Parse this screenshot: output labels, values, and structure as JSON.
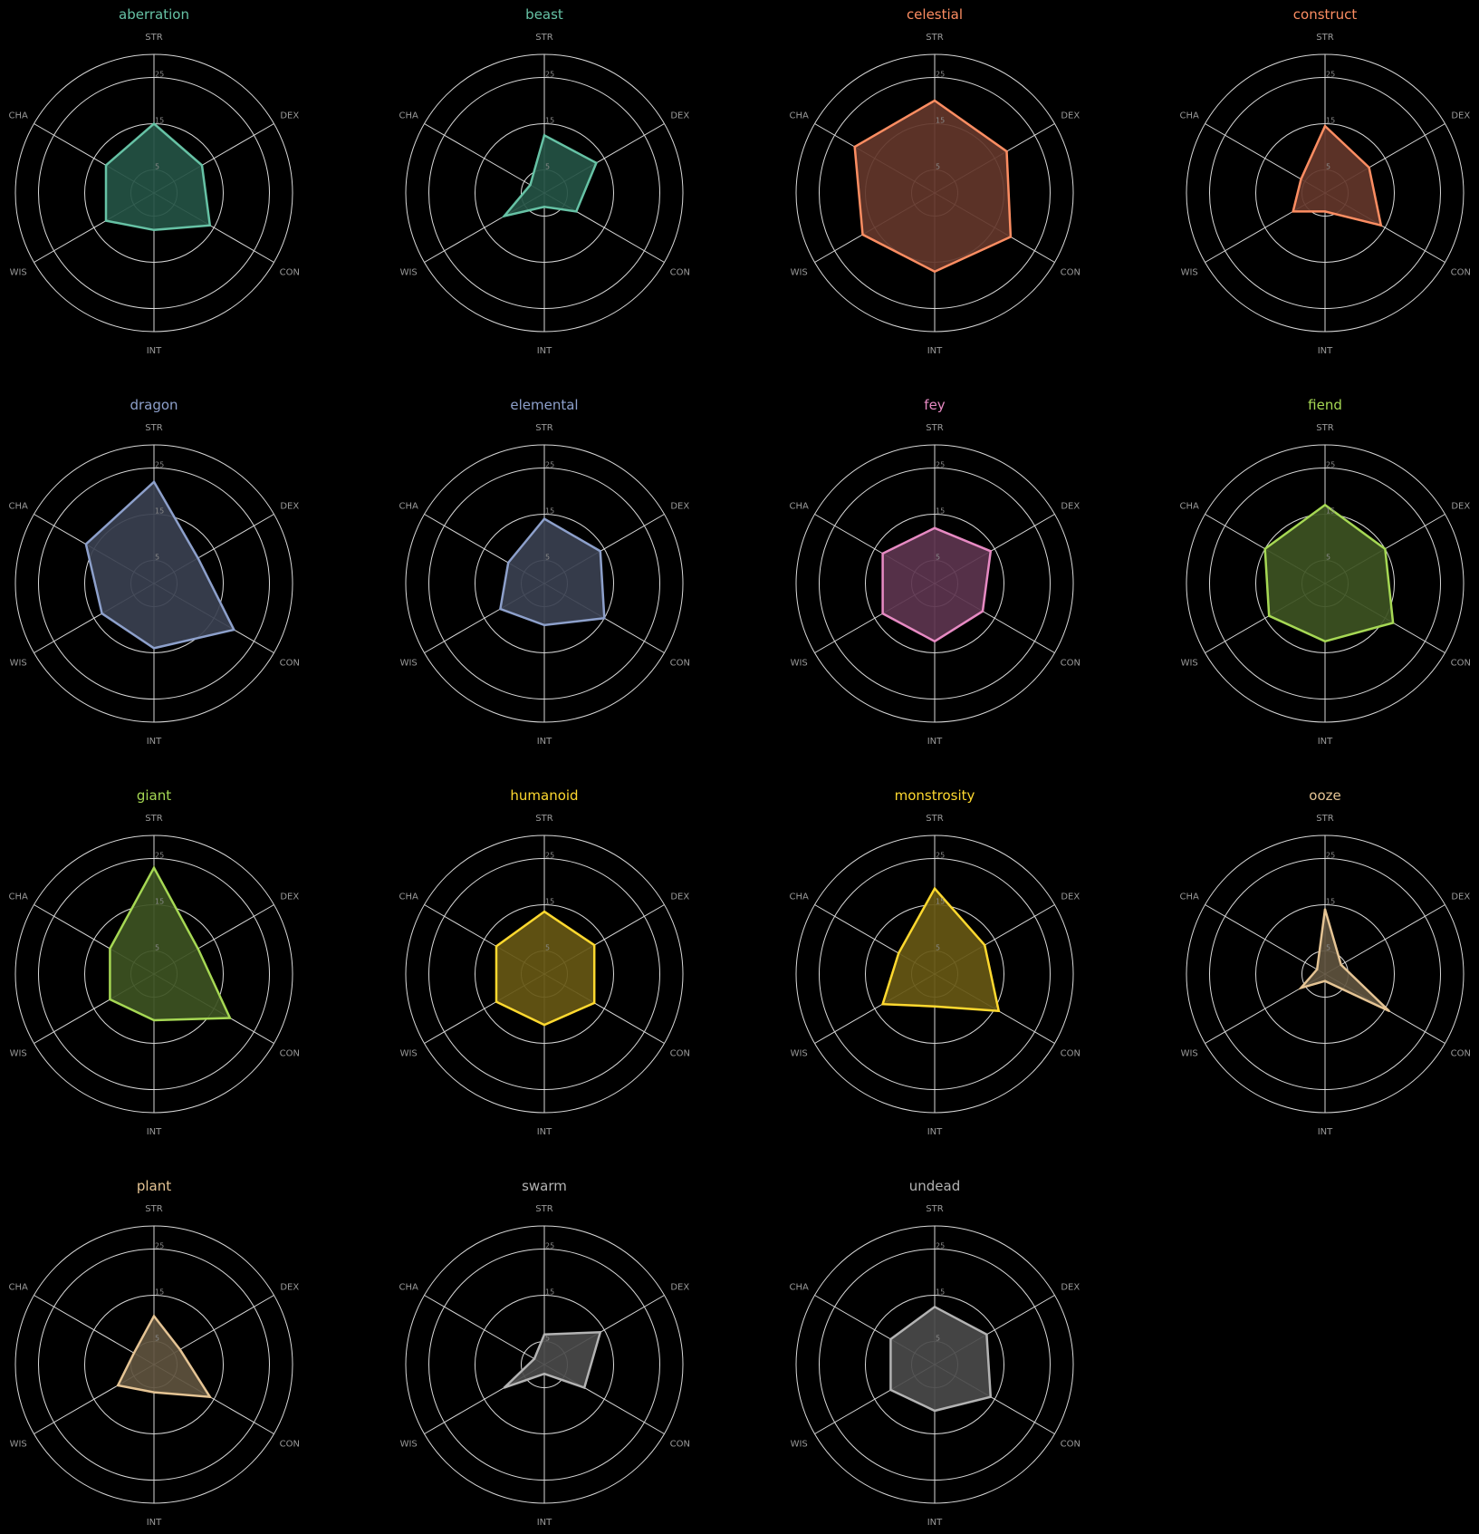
{
  "chart_data": {
    "type": "radar",
    "axes": [
      "STR",
      "DEX",
      "CON",
      "INT",
      "WIS",
      "CHA"
    ],
    "rlim": [
      0,
      30
    ],
    "rings": [
      5,
      15,
      25,
      30
    ],
    "tick_labels": [
      "5",
      "15",
      "25"
    ],
    "grid": true,
    "background": "#000000",
    "grid_color": "#d8d8d8",
    "panels": [
      {
        "title": "aberration",
        "color": "#66c2a5",
        "fill": "#245244",
        "values": [
          15,
          12,
          14,
          8,
          12,
          12
        ]
      },
      {
        "title": "beast",
        "color": "#66c2a5",
        "fill": "#245244",
        "values": [
          12.5,
          13,
          8,
          3,
          10,
          3.5
        ]
      },
      {
        "title": "celestial",
        "color": "#fc8d62",
        "fill": "#63362a",
        "values": [
          20,
          18,
          19,
          17,
          18,
          20
        ]
      },
      {
        "title": "construct",
        "color": "#fc8d62",
        "fill": "#63362a",
        "values": [
          14.5,
          11,
          14,
          4,
          8,
          6
        ]
      },
      {
        "title": "dragon",
        "color": "#8da0cb",
        "fill": "#3a4050",
        "values": [
          22,
          11,
          20,
          14,
          13,
          17
        ]
      },
      {
        "title": "elemental",
        "color": "#8da0cb",
        "fill": "#3a4050",
        "values": [
          14,
          14,
          15,
          9,
          11,
          9
        ]
      },
      {
        "title": "fey",
        "color": "#e78ac3",
        "fill": "#5c344e",
        "values": [
          12,
          14,
          12,
          12.5,
          13,
          13
        ]
      },
      {
        "title": "fiend",
        "color": "#a6d854",
        "fill": "#3d5222",
        "values": [
          17,
          15,
          17,
          12.5,
          14,
          15
        ]
      },
      {
        "title": "giant",
        "color": "#a6d854",
        "fill": "#3d5222",
        "values": [
          23,
          11,
          19,
          10,
          11,
          11
        ]
      },
      {
        "title": "humanoid",
        "color": "#ffd92f",
        "fill": "#665714",
        "values": [
          13.5,
          12.5,
          12.5,
          11,
          12,
          12
        ]
      },
      {
        "title": "monstrosity",
        "color": "#ffd92f",
        "fill": "#665714",
        "values": [
          18.5,
          12.5,
          16,
          7,
          13,
          9
        ]
      },
      {
        "title": "ooze",
        "color": "#e5c494",
        "fill": "#5e523e",
        "values": [
          14,
          4,
          16,
          1.5,
          6,
          2
        ]
      },
      {
        "title": "plant",
        "color": "#e5c494",
        "fill": "#5e523e",
        "values": [
          10.5,
          6.5,
          14,
          6,
          9,
          5
        ]
      },
      {
        "title": "swarm",
        "color": "#b3b3b3",
        "fill": "#4a4a4a",
        "values": [
          6.5,
          14,
          10,
          2,
          10,
          2.5
        ]
      },
      {
        "title": "undead",
        "color": "#b3b3b3",
        "fill": "#4a4a4a",
        "values": [
          12.5,
          13,
          14,
          10,
          11,
          11
        ]
      }
    ]
  }
}
